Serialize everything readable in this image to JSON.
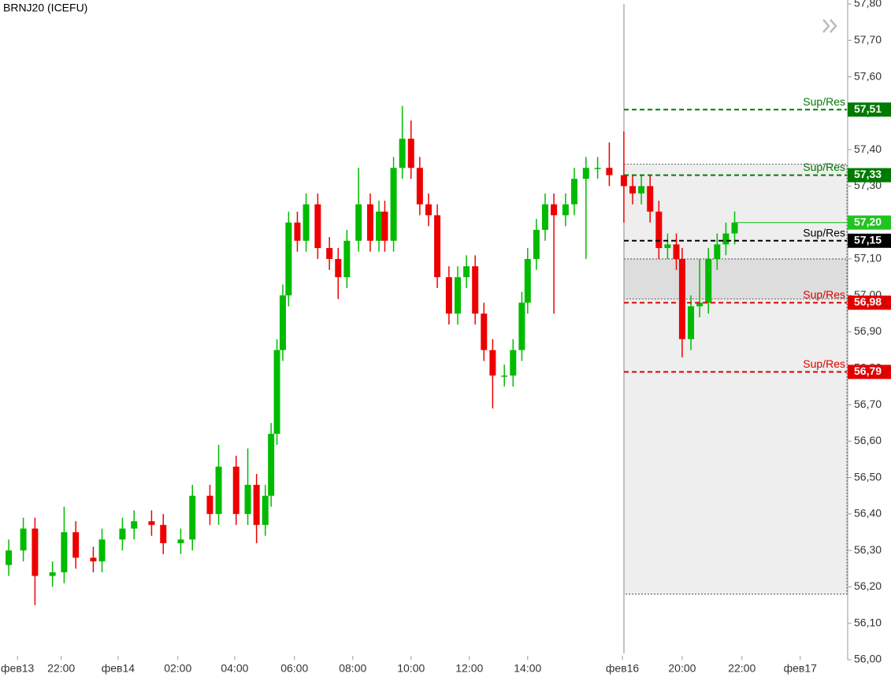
{
  "chart_data": {
    "type": "candlestick",
    "title": "BRNJ20 (ICEFU)",
    "up_color": "#00bb00",
    "down_color": "#ee0000",
    "x": [
      0.3,
      0.8,
      1.2,
      1.8,
      2.2,
      2.6,
      3.2,
      3.5,
      4.2,
      4.6,
      5.2,
      5.6,
      6.2,
      6.6,
      7.2,
      7.5,
      8.1,
      8.5,
      8.8,
      9.1,
      9.3,
      9.5,
      9.7,
      9.9,
      10.2,
      10.5,
      10.9,
      11.3,
      11.6,
      11.9,
      12.3,
      12.7,
      13.0,
      13.2,
      13.5,
      13.8,
      14.1,
      14.4,
      14.7,
      15.0,
      15.4,
      15.7,
      16.0,
      16.3,
      16.6,
      16.9,
      17.3,
      17.6,
      17.9,
      18.1,
      18.4,
      18.7,
      19.0,
      19.4,
      19.7,
      20.1,
      20.5,
      20.9,
      21.4,
      21.7,
      22.0,
      22.3,
      22.6,
      22.9,
      23.2,
      23.4,
      23.7,
      24.0,
      24.3,
      24.6,
      24.9,
      25.2
    ],
    "open": [
      56.26,
      56.3,
      56.36,
      56.23,
      56.24,
      56.35,
      56.28,
      56.27,
      56.33,
      56.36,
      56.38,
      56.37,
      56.32,
      56.33,
      56.45,
      56.4,
      56.53,
      56.4,
      56.48,
      56.37,
      56.45,
      56.62,
      56.85,
      57.0,
      57.2,
      57.15,
      57.25,
      57.13,
      57.1,
      57.05,
      57.15,
      57.25,
      57.15,
      57.23,
      57.15,
      57.35,
      57.43,
      57.35,
      57.25,
      57.22,
      57.05,
      56.95,
      57.05,
      57.08,
      56.95,
      56.85,
      56.78,
      56.78,
      56.85,
      56.98,
      57.1,
      57.18,
      57.25,
      57.22,
      57.25,
      57.32,
      57.35,
      57.35,
      57.33,
      57.3,
      57.28,
      57.3,
      57.23,
      57.13,
      57.14,
      57.1,
      56.88,
      56.97,
      56.98,
      57.1,
      57.14,
      57.17
    ],
    "high": [
      56.33,
      56.39,
      56.39,
      56.27,
      56.42,
      56.38,
      56.31,
      56.36,
      56.39,
      56.41,
      56.41,
      56.4,
      56.36,
      56.48,
      56.48,
      56.59,
      56.56,
      56.58,
      56.51,
      56.48,
      56.65,
      56.88,
      57.03,
      57.23,
      57.23,
      57.28,
      57.28,
      57.16,
      57.13,
      57.18,
      57.35,
      57.28,
      57.26,
      57.26,
      57.38,
      57.52,
      57.48,
      57.38,
      57.28,
      57.25,
      57.08,
      57.08,
      57.11,
      57.11,
      56.98,
      56.88,
      56.81,
      56.88,
      57.01,
      57.13,
      57.21,
      57.28,
      57.28,
      57.28,
      57.35,
      57.38,
      57.38,
      57.42,
      57.45,
      57.33,
      57.33,
      57.33,
      57.26,
      57.17,
      57.17,
      57.13,
      57.0,
      57.1,
      57.13,
      57.17,
      57.2,
      57.23
    ],
    "low": [
      56.23,
      56.27,
      56.15,
      56.2,
      56.21,
      56.25,
      56.24,
      56.24,
      56.3,
      56.33,
      56.34,
      56.29,
      56.29,
      56.3,
      56.37,
      56.37,
      56.37,
      56.37,
      56.32,
      56.34,
      56.42,
      56.59,
      56.82,
      56.97,
      57.12,
      57.12,
      57.1,
      57.07,
      56.99,
      57.02,
      57.12,
      57.12,
      57.12,
      57.12,
      57.12,
      57.32,
      57.32,
      57.22,
      57.19,
      57.02,
      56.92,
      56.92,
      57.02,
      56.92,
      56.82,
      56.69,
      56.75,
      56.75,
      56.82,
      56.95,
      57.07,
      57.15,
      56.95,
      57.19,
      57.22,
      57.1,
      57.32,
      57.3,
      57.2,
      57.25,
      57.25,
      57.2,
      57.1,
      57.1,
      57.07,
      56.83,
      56.85,
      56.94,
      56.95,
      57.07,
      57.11,
      57.14
    ],
    "close": [
      56.3,
      56.36,
      56.23,
      56.24,
      56.35,
      56.28,
      56.27,
      56.33,
      56.36,
      56.38,
      56.37,
      56.32,
      56.33,
      56.45,
      56.4,
      56.53,
      56.4,
      56.48,
      56.37,
      56.45,
      56.62,
      56.85,
      57.0,
      57.2,
      57.15,
      57.25,
      57.13,
      57.1,
      57.05,
      57.15,
      57.25,
      57.15,
      57.23,
      57.15,
      57.35,
      57.43,
      57.35,
      57.25,
      57.22,
      57.05,
      56.95,
      57.05,
      57.08,
      56.95,
      56.85,
      56.78,
      56.78,
      56.85,
      56.98,
      57.1,
      57.18,
      57.25,
      57.22,
      57.25,
      57.32,
      57.35,
      57.35,
      57.33,
      57.3,
      57.28,
      57.3,
      57.23,
      57.13,
      57.14,
      57.1,
      56.88,
      56.97,
      56.98,
      57.1,
      57.14,
      57.17,
      57.2
    ],
    "xlim": [
      0,
      29.05
    ],
    "xticks": [
      {
        "value": 0.6,
        "label": "фев13"
      },
      {
        "value": 2.1,
        "label": "22:00"
      },
      {
        "value": 4.05,
        "label": "фев14"
      },
      {
        "value": 6.1,
        "label": "02:00"
      },
      {
        "value": 8.05,
        "label": "04:00"
      },
      {
        "value": 10.1,
        "label": "06:00"
      },
      {
        "value": 12.1,
        "label": "08:00"
      },
      {
        "value": 14.1,
        "label": "10:00"
      },
      {
        "value": 16.1,
        "label": "12:00"
      },
      {
        "value": 18.1,
        "label": "14:00"
      },
      {
        "value": 21.35,
        "label": "фев16"
      },
      {
        "value": 23.4,
        "label": "20:00"
      },
      {
        "value": 25.45,
        "label": "22:00"
      },
      {
        "value": 27.45,
        "label": "фев17"
      }
    ],
    "ylim": [
      56.0,
      57.8
    ],
    "yticks": [
      {
        "value": 56.0,
        "label": "56,00"
      },
      {
        "value": 56.1,
        "label": "56,10"
      },
      {
        "value": 56.2,
        "label": "56,20"
      },
      {
        "value": 56.3,
        "label": "56,30"
      },
      {
        "value": 56.4,
        "label": "56,40"
      },
      {
        "value": 56.5,
        "label": "56,50"
      },
      {
        "value": 56.6,
        "label": "56,60"
      },
      {
        "value": 56.7,
        "label": "56,70"
      },
      {
        "value": 56.8,
        "label": "56,80"
      },
      {
        "value": 56.9,
        "label": "56,90"
      },
      {
        "value": 57.0,
        "label": "57,00"
      },
      {
        "value": 57.1,
        "label": "57,10"
      },
      {
        "value": 57.2,
        "label": "57,20"
      },
      {
        "value": 57.3,
        "label": "57,30"
      },
      {
        "value": 57.4,
        "label": "57,40"
      },
      {
        "value": 57.5,
        "label": "57,50"
      },
      {
        "value": 57.6,
        "label": "57,60"
      },
      {
        "value": 57.7,
        "label": "57,70"
      },
      {
        "value": 57.8,
        "label": "57,80"
      }
    ],
    "zones": [
      {
        "top": 57.36,
        "bottom": 56.18,
        "color": "#eeeeee"
      },
      {
        "top": 57.1,
        "bottom": 56.99,
        "color": "#dddddd"
      }
    ],
    "levels": [
      {
        "value": 57.51,
        "label": "57,51",
        "text": "Sup/Res",
        "color": "#007a00"
      },
      {
        "value": 57.33,
        "label": "57,33",
        "text": "Sup/Res",
        "color": "#007a00"
      },
      {
        "value": 57.15,
        "label": "57,15",
        "text": "Sup/Res",
        "color": "#000000"
      },
      {
        "value": 56.98,
        "label": "56,98",
        "text": "Sup/Res",
        "color": "#e00000"
      },
      {
        "value": 56.79,
        "label": "56,79",
        "text": "Sup/Res",
        "color": "#e00000"
      }
    ],
    "last": {
      "value": 57.2,
      "label": "57,20",
      "color": "#22c422"
    }
  }
}
